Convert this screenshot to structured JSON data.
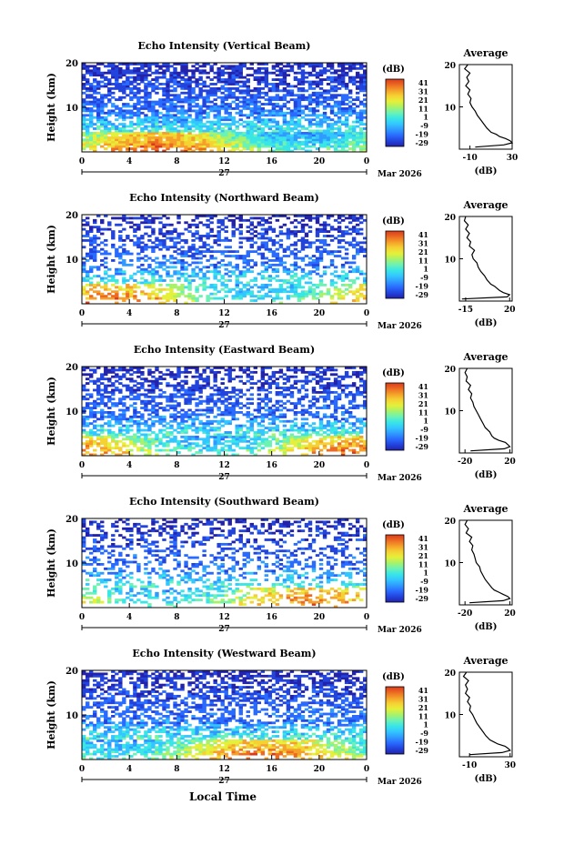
{
  "colors": {
    "colorbar": [
      "#2222aa",
      "#2244dd",
      "#2a6bff",
      "#2f9bff",
      "#33c6ff",
      "#39e6e6",
      "#6cf2b4",
      "#a7f26a",
      "#e5f03a",
      "#f5d233",
      "#f5a02a",
      "#ec6a22",
      "#d93a1c"
    ]
  },
  "figure": {
    "xlabel": "Local Time",
    "date_label": "Mar 2026",
    "day_label": "27",
    "colorbar_label": "(dB)",
    "colorbar_ticks": [
      "41",
      "31",
      "21",
      "11",
      "1",
      "-9",
      "-19",
      "-29"
    ],
    "avg_title": "Average",
    "avg_xlabel": "(dB)",
    "x_ticks": [
      "0",
      "4",
      "8",
      "12",
      "16",
      "20",
      "0"
    ],
    "y_ticks": [
      "20",
      "10"
    ],
    "ylabel": "Height (km)"
  },
  "chart_data": [
    {
      "type": "heatmap",
      "title": "Echo Intensity (Vertical Beam)",
      "ylabel": "Height (km)",
      "xlim": [
        0,
        24
      ],
      "ylim": [
        0,
        20
      ],
      "avg_ticks": [
        "-10",
        "30"
      ],
      "avg_xlim": [
        -20,
        30
      ],
      "avg_profile": {
        "height_km": [
          0.5,
          1,
          1.5,
          2,
          2.5,
          3,
          3.5,
          4,
          5,
          6,
          7,
          8,
          9,
          10,
          11,
          12,
          13,
          14,
          15,
          16,
          17,
          18,
          19,
          20
        ],
        "db": [
          -5,
          22,
          30,
          28,
          24,
          18,
          15,
          10,
          6,
          3,
          0,
          -3,
          -5,
          -8,
          -10,
          -9,
          -12,
          -10,
          -14,
          -11,
          -13,
          -10,
          -15,
          -12
        ]
      }
    },
    {
      "type": "heatmap",
      "title": "Echo Intensity (Northward Beam)",
      "ylabel": "Height (km)",
      "xlim": [
        0,
        24
      ],
      "ylim": [
        0,
        20
      ],
      "avg_ticks": [
        "-15",
        "20"
      ],
      "avg_xlim": [
        -20,
        22
      ],
      "avg_profile": {
        "height_km": [
          0.5,
          1,
          1.5,
          2,
          2.5,
          3,
          3.5,
          4,
          5,
          6,
          7,
          8,
          9,
          10,
          11,
          12,
          13,
          14,
          15,
          16,
          17,
          18,
          19,
          20
        ],
        "db": [
          -18,
          18,
          20,
          15,
          12,
          10,
          8,
          5,
          2,
          0,
          -3,
          -5,
          -6,
          -9,
          -10,
          -8,
          -12,
          -11,
          -14,
          -12,
          -15,
          -13,
          -16,
          -15
        ]
      }
    },
    {
      "type": "heatmap",
      "title": "Echo Intensity (Eastward Beam)",
      "ylabel": "Height (km)",
      "xlim": [
        0,
        24
      ],
      "ylim": [
        0,
        20
      ],
      "avg_ticks": [
        "-20",
        "20"
      ],
      "avg_xlim": [
        -25,
        22
      ],
      "avg_profile": {
        "height_km": [
          0.5,
          1,
          1.5,
          2,
          2.5,
          3,
          3.5,
          4,
          5,
          6,
          7,
          8,
          9,
          10,
          11,
          12,
          13,
          14,
          15,
          16,
          17,
          18,
          19,
          20
        ],
        "db": [
          -15,
          15,
          20,
          18,
          16,
          10,
          6,
          4,
          2,
          -2,
          -4,
          -6,
          -8,
          -10,
          -12,
          -13,
          -15,
          -14,
          -17,
          -15,
          -19,
          -18,
          -20,
          -18
        ]
      }
    },
    {
      "type": "heatmap",
      "title": "Echo Intensity (Southward Beam)",
      "ylabel": "Height (km)",
      "xlim": [
        0,
        24
      ],
      "ylim": [
        0,
        20
      ],
      "avg_ticks": [
        "-20",
        "20"
      ],
      "avg_xlim": [
        -25,
        22
      ],
      "avg_profile": {
        "height_km": [
          0.5,
          1,
          1.5,
          2,
          2.5,
          3,
          3.5,
          4,
          5,
          6,
          7,
          8,
          9,
          10,
          11,
          12,
          13,
          14,
          15,
          16,
          17,
          18,
          19,
          20
        ],
        "db": [
          -16,
          14,
          20,
          18,
          14,
          10,
          6,
          4,
          1,
          -2,
          -4,
          -6,
          -7,
          -10,
          -11,
          -12,
          -14,
          -13,
          -16,
          -14,
          -19,
          -17,
          -20,
          -18
        ]
      }
    },
    {
      "type": "heatmap",
      "title": "Echo Intensity (Westward Beam)",
      "ylabel": "Height (km)",
      "xlim": [
        0,
        24
      ],
      "ylim": [
        0,
        20
      ],
      "avg_ticks": [
        "-10",
        "30"
      ],
      "avg_xlim": [
        -20,
        32
      ],
      "avg_profile": {
        "height_km": [
          0.5,
          1,
          1.5,
          2,
          2.5,
          3,
          3.5,
          4,
          5,
          6,
          7,
          8,
          9,
          10,
          11,
          12,
          13,
          14,
          15,
          16,
          17,
          18,
          19,
          20
        ],
        "db": [
          -10,
          22,
          30,
          28,
          25,
          18,
          14,
          10,
          6,
          3,
          0,
          -3,
          -5,
          -7,
          -10,
          -9,
          -12,
          -10,
          -14,
          -12,
          -14,
          -11,
          -16,
          -13
        ]
      }
    }
  ]
}
